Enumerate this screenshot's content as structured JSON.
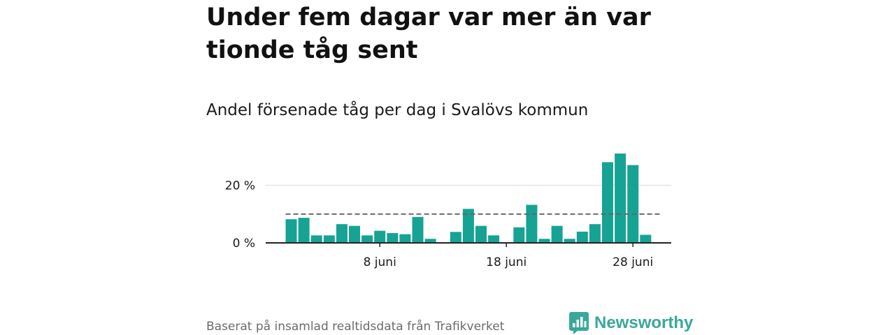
{
  "headline": "Under fem dagar var mer än var tionde tåg sent",
  "subtitle": "Andel försenade tåg per dag i Svalövs kommun",
  "footer": {
    "source": "Baserat på insamlad realtidsdata från Trafikverket",
    "brand": "Newsworthy"
  },
  "colors": {
    "bar": "#16a394",
    "reference_line": "#666666",
    "grid": "#d9d9d9",
    "axis": "#222222",
    "brand": "#3aa79b"
  },
  "chart_data": {
    "type": "bar",
    "title": "",
    "xlabel": "",
    "ylabel": "",
    "x_unit": "day of June",
    "x": [
      1,
      2,
      3,
      4,
      5,
      6,
      7,
      8,
      9,
      10,
      11,
      12,
      13,
      14,
      15,
      16,
      17,
      18,
      19,
      20,
      21,
      22,
      23,
      24,
      25,
      26,
      27,
      28,
      29,
      30
    ],
    "values": [
      8.2,
      8.7,
      2.6,
      2.6,
      6.5,
      5.9,
      2.6,
      4.2,
      3.4,
      3.0,
      9.0,
      1.4,
      null,
      3.8,
      11.8,
      5.9,
      2.6,
      null,
      5.4,
      13.2,
      1.4,
      5.9,
      1.4,
      3.9,
      6.5,
      28.0,
      31.0,
      27.0,
      2.8,
      null
    ],
    "reference_line": {
      "value": 10,
      "style": "dashed",
      "x_start": 1,
      "x_end": 30
    },
    "ylim": [
      0,
      31
    ],
    "y_ticks": [
      {
        "value": 0,
        "label": "0 %"
      },
      {
        "value": 20,
        "label": "20 %"
      }
    ],
    "x_ticks": [
      {
        "value": 8,
        "label": "8 juni"
      },
      {
        "value": 18,
        "label": "18 juni"
      },
      {
        "value": 28,
        "label": "28 juni"
      }
    ],
    "grid": "horizontal",
    "legend": "none"
  }
}
